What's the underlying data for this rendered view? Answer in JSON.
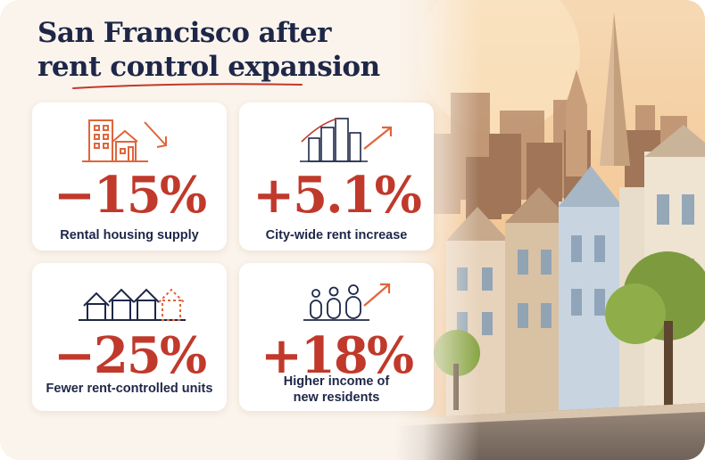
{
  "header": {
    "title_line1": "San Francisco after",
    "title_line2": "rent control expansion"
  },
  "stats": [
    {
      "value": "−15%",
      "label_line1": "Rental housing supply",
      "label_line2": "",
      "icon": "buildings-down-arrow-icon"
    },
    {
      "value": "+5.1%",
      "label_line1": "City-wide rent increase",
      "label_line2": "",
      "icon": "skyline-up-arrow-icon"
    },
    {
      "value": "−25%",
      "label_line1": "Fewer rent-controlled units",
      "label_line2": "",
      "icon": "houses-icon"
    },
    {
      "value": "+18%",
      "label_line1": "Higher income of",
      "label_line2": "new residents",
      "icon": "people-up-arrow-icon"
    }
  ],
  "colors": {
    "accent": "#c0392b",
    "title": "#1e2748",
    "icon": "#e0653a",
    "background": "#f8efe6"
  }
}
